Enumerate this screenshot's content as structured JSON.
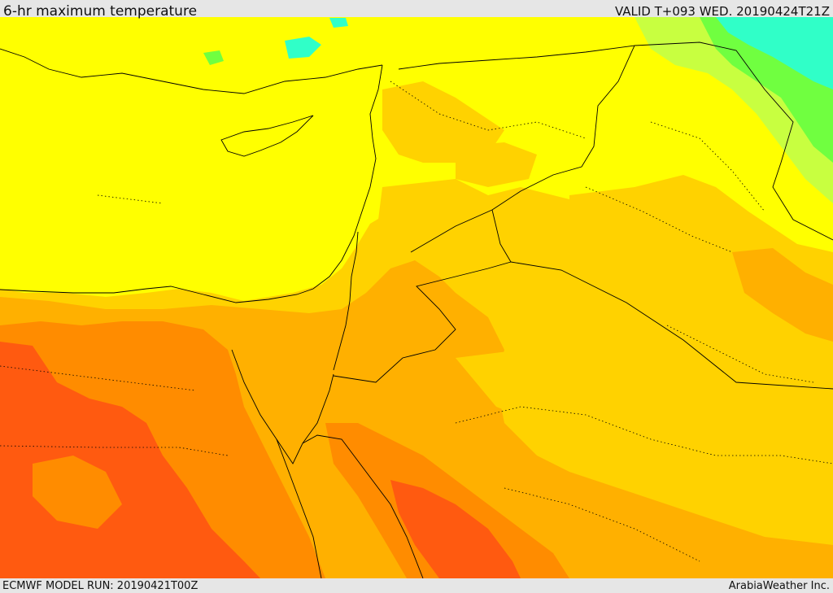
{
  "header": {
    "title": "6-hr maximum temperature",
    "valid": "VALID T+093 WED. 20190424T21Z"
  },
  "footer": {
    "model_run": "ECMWF MODEL RUN: 20190421T00Z",
    "credit": "ArabiaWeather Inc."
  },
  "map": {
    "field": "6-hr maximum temperature",
    "colors": {
      "sea_yellow": "#ffff00",
      "light_orange": "#ffd200",
      "orange": "#ffb000",
      "dark_orange": "#ff8c00",
      "red_orange": "#ff5a10",
      "light_green": "#c8ff40",
      "green": "#70ff40",
      "cyan": "#30ffc8",
      "boundary": "#000000"
    }
  }
}
